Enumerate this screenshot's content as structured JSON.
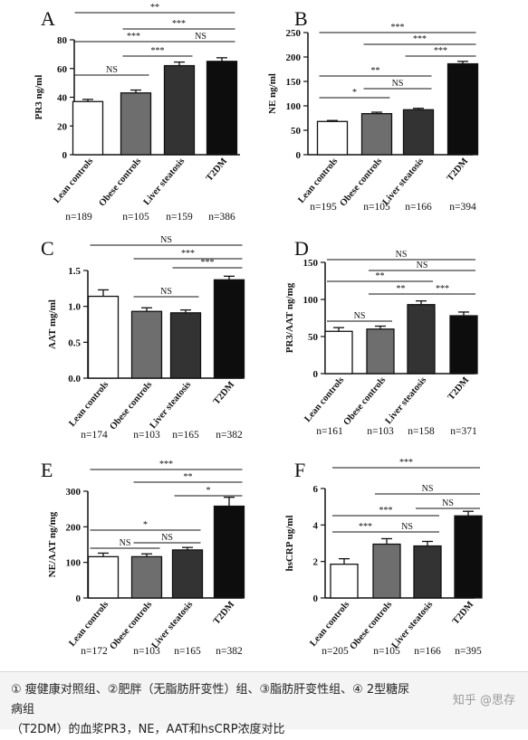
{
  "chart_data": [
    {
      "type": "bar",
      "panel": "A",
      "ylabel": "PR3 ng/ml",
      "ylim": [
        0,
        80
      ],
      "yticks": [
        0,
        20,
        40,
        60,
        80
      ],
      "categories": [
        "Lean controls",
        "Obese controls",
        "Liver steatosis",
        "T2DM"
      ],
      "values": [
        37,
        43,
        62,
        65
      ],
      "errors": [
        1.5,
        2,
        2.5,
        2.5
      ],
      "colors": [
        "#ffffff",
        "#6e6e6e",
        "#333333",
        "#0d0d0d"
      ],
      "n": [
        "n=189",
        "n=105",
        "n=159",
        "n=386"
      ],
      "significance": [
        {
          "from": 0,
          "to": 3,
          "label": "**"
        },
        {
          "from": 1,
          "to": 3,
          "label": "***"
        },
        {
          "from": 0,
          "to": 2,
          "label": "***"
        },
        {
          "from": 2,
          "to": 3,
          "label": "NS"
        },
        {
          "from": 1,
          "to": 2,
          "label": "***"
        },
        {
          "from": 0,
          "to": 1,
          "label": "NS"
        }
      ]
    },
    {
      "type": "bar",
      "panel": "B",
      "ylabel": "NE ng/ml",
      "ylim": [
        0,
        250
      ],
      "yticks": [
        0,
        50,
        100,
        150,
        200,
        250
      ],
      "categories": [
        "Lean controls",
        "Obese controls",
        "Liver steatosis",
        "T2DM"
      ],
      "values": [
        68,
        84,
        92,
        186
      ],
      "errors": [
        2,
        3,
        3,
        5
      ],
      "colors": [
        "#ffffff",
        "#6e6e6e",
        "#333333",
        "#0d0d0d"
      ],
      "n": [
        "n=195",
        "n=105",
        "n=166",
        "n=394"
      ],
      "significance": [
        {
          "from": 0,
          "to": 3,
          "label": "***"
        },
        {
          "from": 1,
          "to": 3,
          "label": "***"
        },
        {
          "from": 2,
          "to": 3,
          "label": "***"
        },
        {
          "from": 0,
          "to": 2,
          "label": "**"
        },
        {
          "from": 1,
          "to": 2,
          "label": "NS"
        },
        {
          "from": 0,
          "to": 1,
          "label": "*"
        }
      ]
    },
    {
      "type": "bar",
      "panel": "C",
      "ylabel": "AAT mg/ml",
      "ylim": [
        0,
        1.5
      ],
      "yticks": [
        0.0,
        0.5,
        1.0,
        1.5
      ],
      "categories": [
        "Lean controls",
        "Obese controls",
        "Liver steatosis",
        "T2DM"
      ],
      "values": [
        1.14,
        0.93,
        0.91,
        1.37
      ],
      "errors": [
        0.09,
        0.05,
        0.04,
        0.05
      ],
      "colors": [
        "#ffffff",
        "#6e6e6e",
        "#333333",
        "#0d0d0d"
      ],
      "n": [
        "n=174",
        "n=103",
        "n=165",
        "n=382"
      ],
      "significance": [
        {
          "from": 0,
          "to": 3,
          "label": "NS"
        },
        {
          "from": 1,
          "to": 3,
          "label": "***"
        },
        {
          "from": 2,
          "to": 3,
          "label": "***"
        },
        {
          "from": 1,
          "to": 2,
          "label": "NS"
        }
      ]
    },
    {
      "type": "bar",
      "panel": "D",
      "ylabel": "PR3/AAT ng/mg",
      "ylim": [
        0,
        150
      ],
      "yticks": [
        0,
        50,
        100,
        150
      ],
      "categories": [
        "Lean controls",
        "Obese controls",
        "Liver steatosis",
        "T2DM"
      ],
      "values": [
        57,
        60,
        93,
        78
      ],
      "errors": [
        5,
        4,
        5,
        5
      ],
      "colors": [
        "#ffffff",
        "#6e6e6e",
        "#333333",
        "#0d0d0d"
      ],
      "n": [
        "n=161",
        "n=103",
        "n=158",
        "n=371"
      ],
      "significance": [
        {
          "from": 0,
          "to": 3,
          "label": "NS"
        },
        {
          "from": 1,
          "to": 3,
          "label": "NS"
        },
        {
          "from": 0,
          "to": 2,
          "label": "**"
        },
        {
          "from": 1,
          "to": 2,
          "label": "**"
        },
        {
          "from": 2,
          "to": 3,
          "label": "***"
        },
        {
          "from": 0,
          "to": 1,
          "label": "NS"
        }
      ]
    },
    {
      "type": "bar",
      "panel": "E",
      "ylabel": "NE/AAT ng/mg",
      "ylim": [
        0,
        300
      ],
      "yticks": [
        0,
        100,
        200,
        300
      ],
      "categories": [
        "Lean controls",
        "Obese controls",
        "Liver steatosis",
        "T2DM"
      ],
      "values": [
        116,
        116,
        135,
        258
      ],
      "errors": [
        10,
        8,
        7,
        25
      ],
      "colors": [
        "#ffffff",
        "#6e6e6e",
        "#333333",
        "#0d0d0d"
      ],
      "n": [
        "n=172",
        "n=103",
        "n=165",
        "n=382"
      ],
      "significance": [
        {
          "from": 0,
          "to": 3,
          "label": "***"
        },
        {
          "from": 1,
          "to": 3,
          "label": "**"
        },
        {
          "from": 2,
          "to": 3,
          "label": "*"
        },
        {
          "from": 0,
          "to": 2,
          "label": "*"
        },
        {
          "from": 0,
          "to": 1,
          "label": "NS"
        },
        {
          "from": 1,
          "to": 2,
          "label": "NS"
        }
      ]
    },
    {
      "type": "bar",
      "panel": "F",
      "ylabel": "hsCRP ug/ml",
      "ylim": [
        0,
        6
      ],
      "yticks": [
        0,
        2,
        4,
        6
      ],
      "categories": [
        "Lean controls",
        "Obese controls",
        "Liver steatosis",
        "T2DM"
      ],
      "values": [
        1.85,
        2.95,
        2.85,
        4.5
      ],
      "errors": [
        0.3,
        0.3,
        0.25,
        0.25
      ],
      "colors": [
        "#ffffff",
        "#6e6e6e",
        "#333333",
        "#0d0d0d"
      ],
      "n": [
        "n=205",
        "n=105",
        "n=166",
        "n=395"
      ],
      "significance": [
        {
          "from": 0,
          "to": 3,
          "label": "***"
        },
        {
          "from": 1,
          "to": 3,
          "label": "NS"
        },
        {
          "from": 2,
          "to": 3,
          "label": "NS"
        },
        {
          "from": 0,
          "to": 2,
          "label": "***"
        },
        {
          "from": 0,
          "to": 1,
          "label": "***"
        },
        {
          "from": 1,
          "to": 2,
          "label": "NS"
        }
      ]
    }
  ],
  "caption": {
    "line1": "① 瘦健康对照组、②肥胖（无脂肪肝变性）组、③脂肪肝变性组、④ 2型糖尿病组",
    "line2": "（T2DM）的血浆PR3，NE，AAT和hsCRP浓度对比",
    "watermark": "知乎 @思存"
  }
}
